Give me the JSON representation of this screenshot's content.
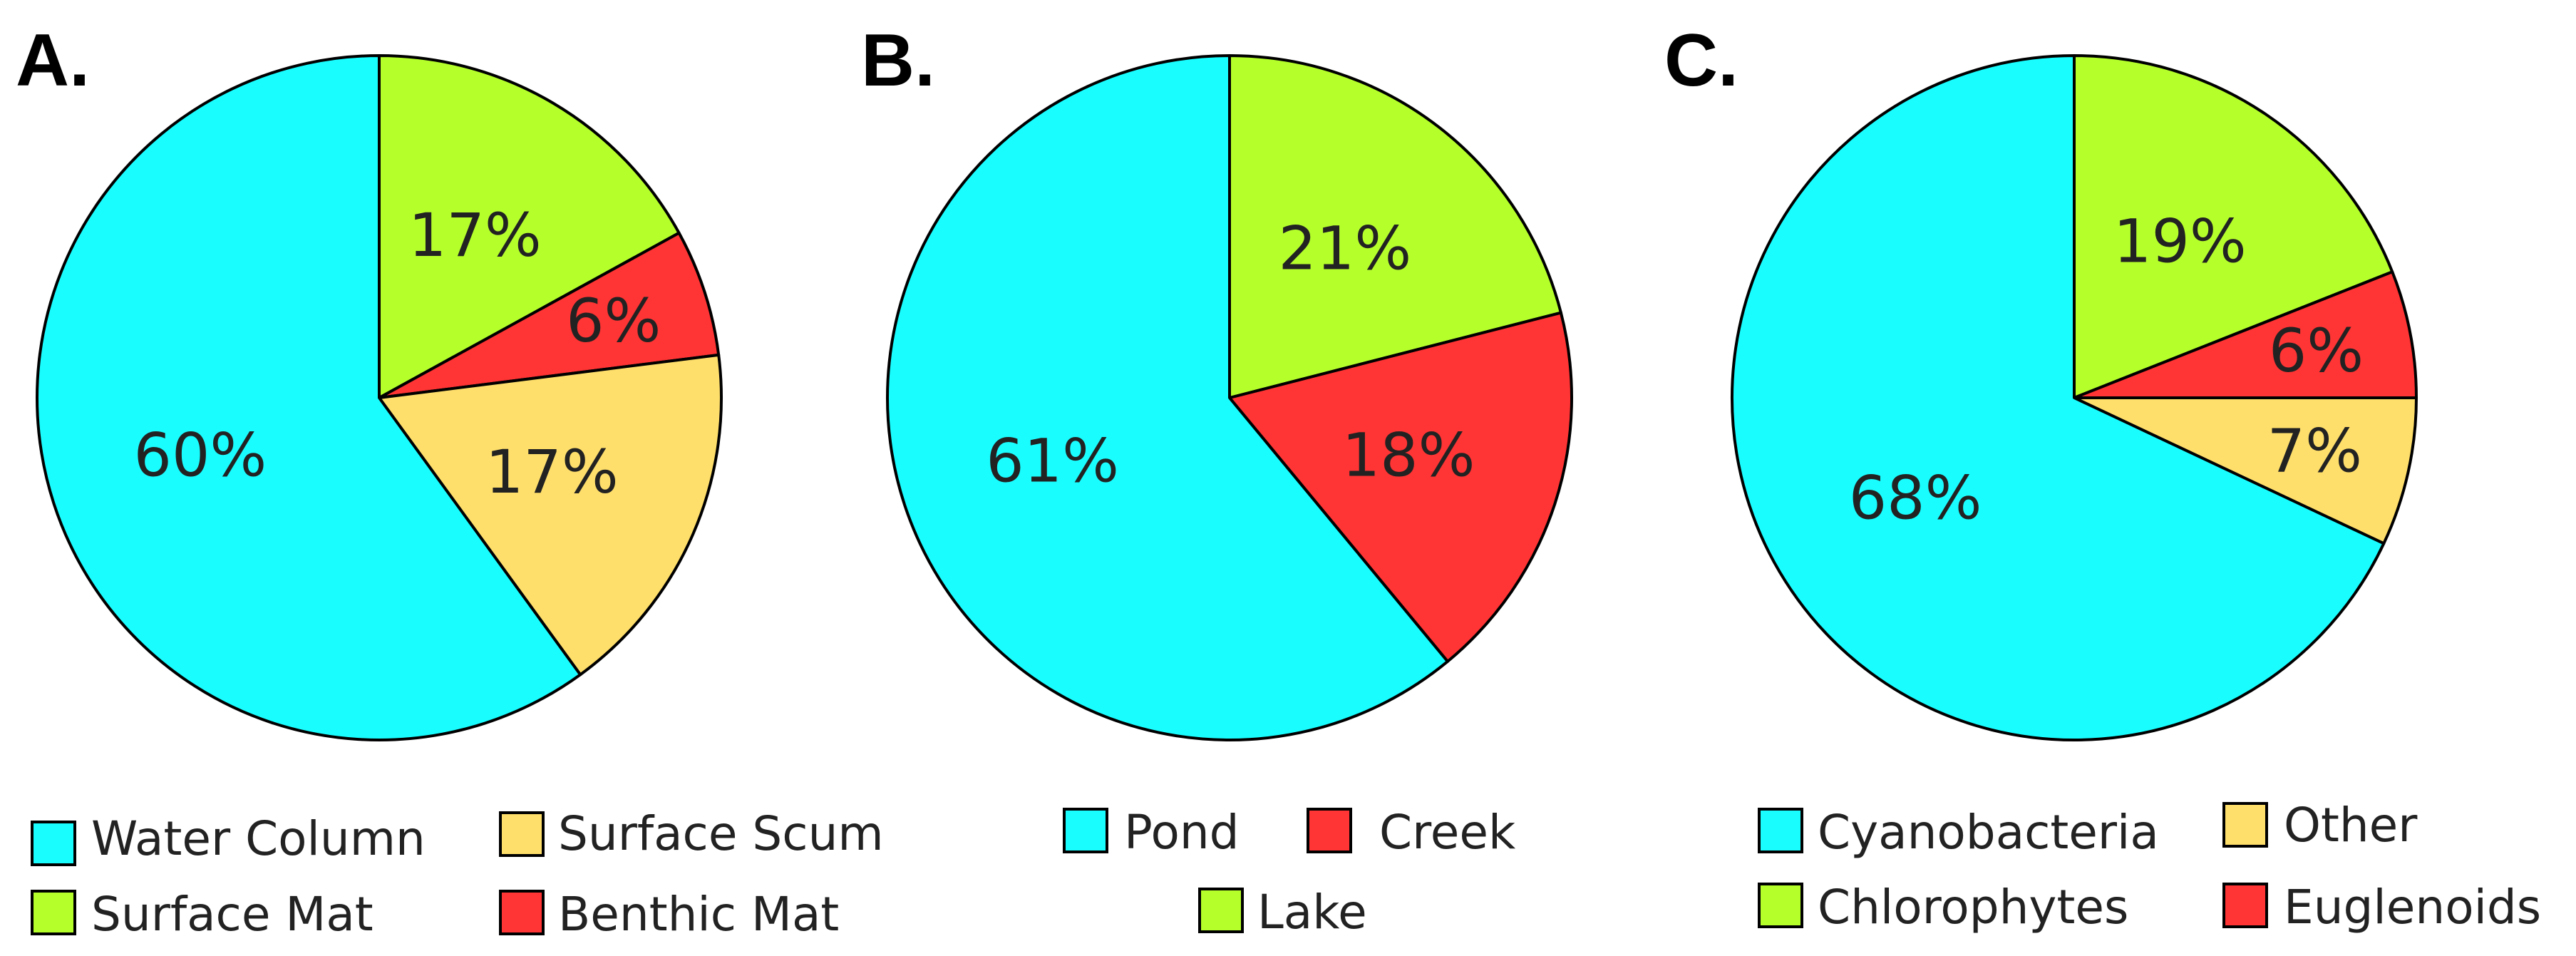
{
  "chart_data": [
    {
      "type": "pie",
      "panel": "A.",
      "slices": [
        {
          "label": "Surface Mat",
          "value": 17,
          "text": "17%",
          "color": "#b5ff2b"
        },
        {
          "label": "Benthic Mat",
          "value": 6,
          "text": "6%",
          "color": "#ff3434"
        },
        {
          "label": "Surface Scum",
          "value": 17,
          "text": "17%",
          "color": "#ffdf6b"
        },
        {
          "label": "Water Column",
          "value": 60,
          "text": "60%",
          "color": "#1afdff"
        }
      ],
      "legend": [
        "Water Column",
        "Surface Scum",
        "Surface Mat",
        "Benthic Mat"
      ]
    },
    {
      "type": "pie",
      "panel": "B.",
      "slices": [
        {
          "label": "Lake",
          "value": 21,
          "text": "21%",
          "color": "#b5ff2b"
        },
        {
          "label": "Creek",
          "value": 18,
          "text": "18%",
          "color": "#ff3434"
        },
        {
          "label": "Pond",
          "value": 61,
          "text": "61%",
          "color": "#1afdff"
        }
      ],
      "legend": [
        "Pond",
        "Creek",
        "Lake"
      ]
    },
    {
      "type": "pie",
      "panel": "C.",
      "slices": [
        {
          "label": "Chlorophytes",
          "value": 19,
          "text": "19%",
          "color": "#b5ff2b"
        },
        {
          "label": "Euglenoids",
          "value": 6,
          "text": "6%",
          "color": "#ff3434"
        },
        {
          "label": "Other",
          "value": 7,
          "text": "7%",
          "color": "#ffdf6b"
        },
        {
          "label": "Cyanobacteria",
          "value": 68,
          "text": "68%",
          "color": "#1afdff"
        }
      ],
      "legend": [
        "Cyanobacteria",
        "Other",
        "Chlorophytes",
        "Euglenoids"
      ]
    }
  ]
}
